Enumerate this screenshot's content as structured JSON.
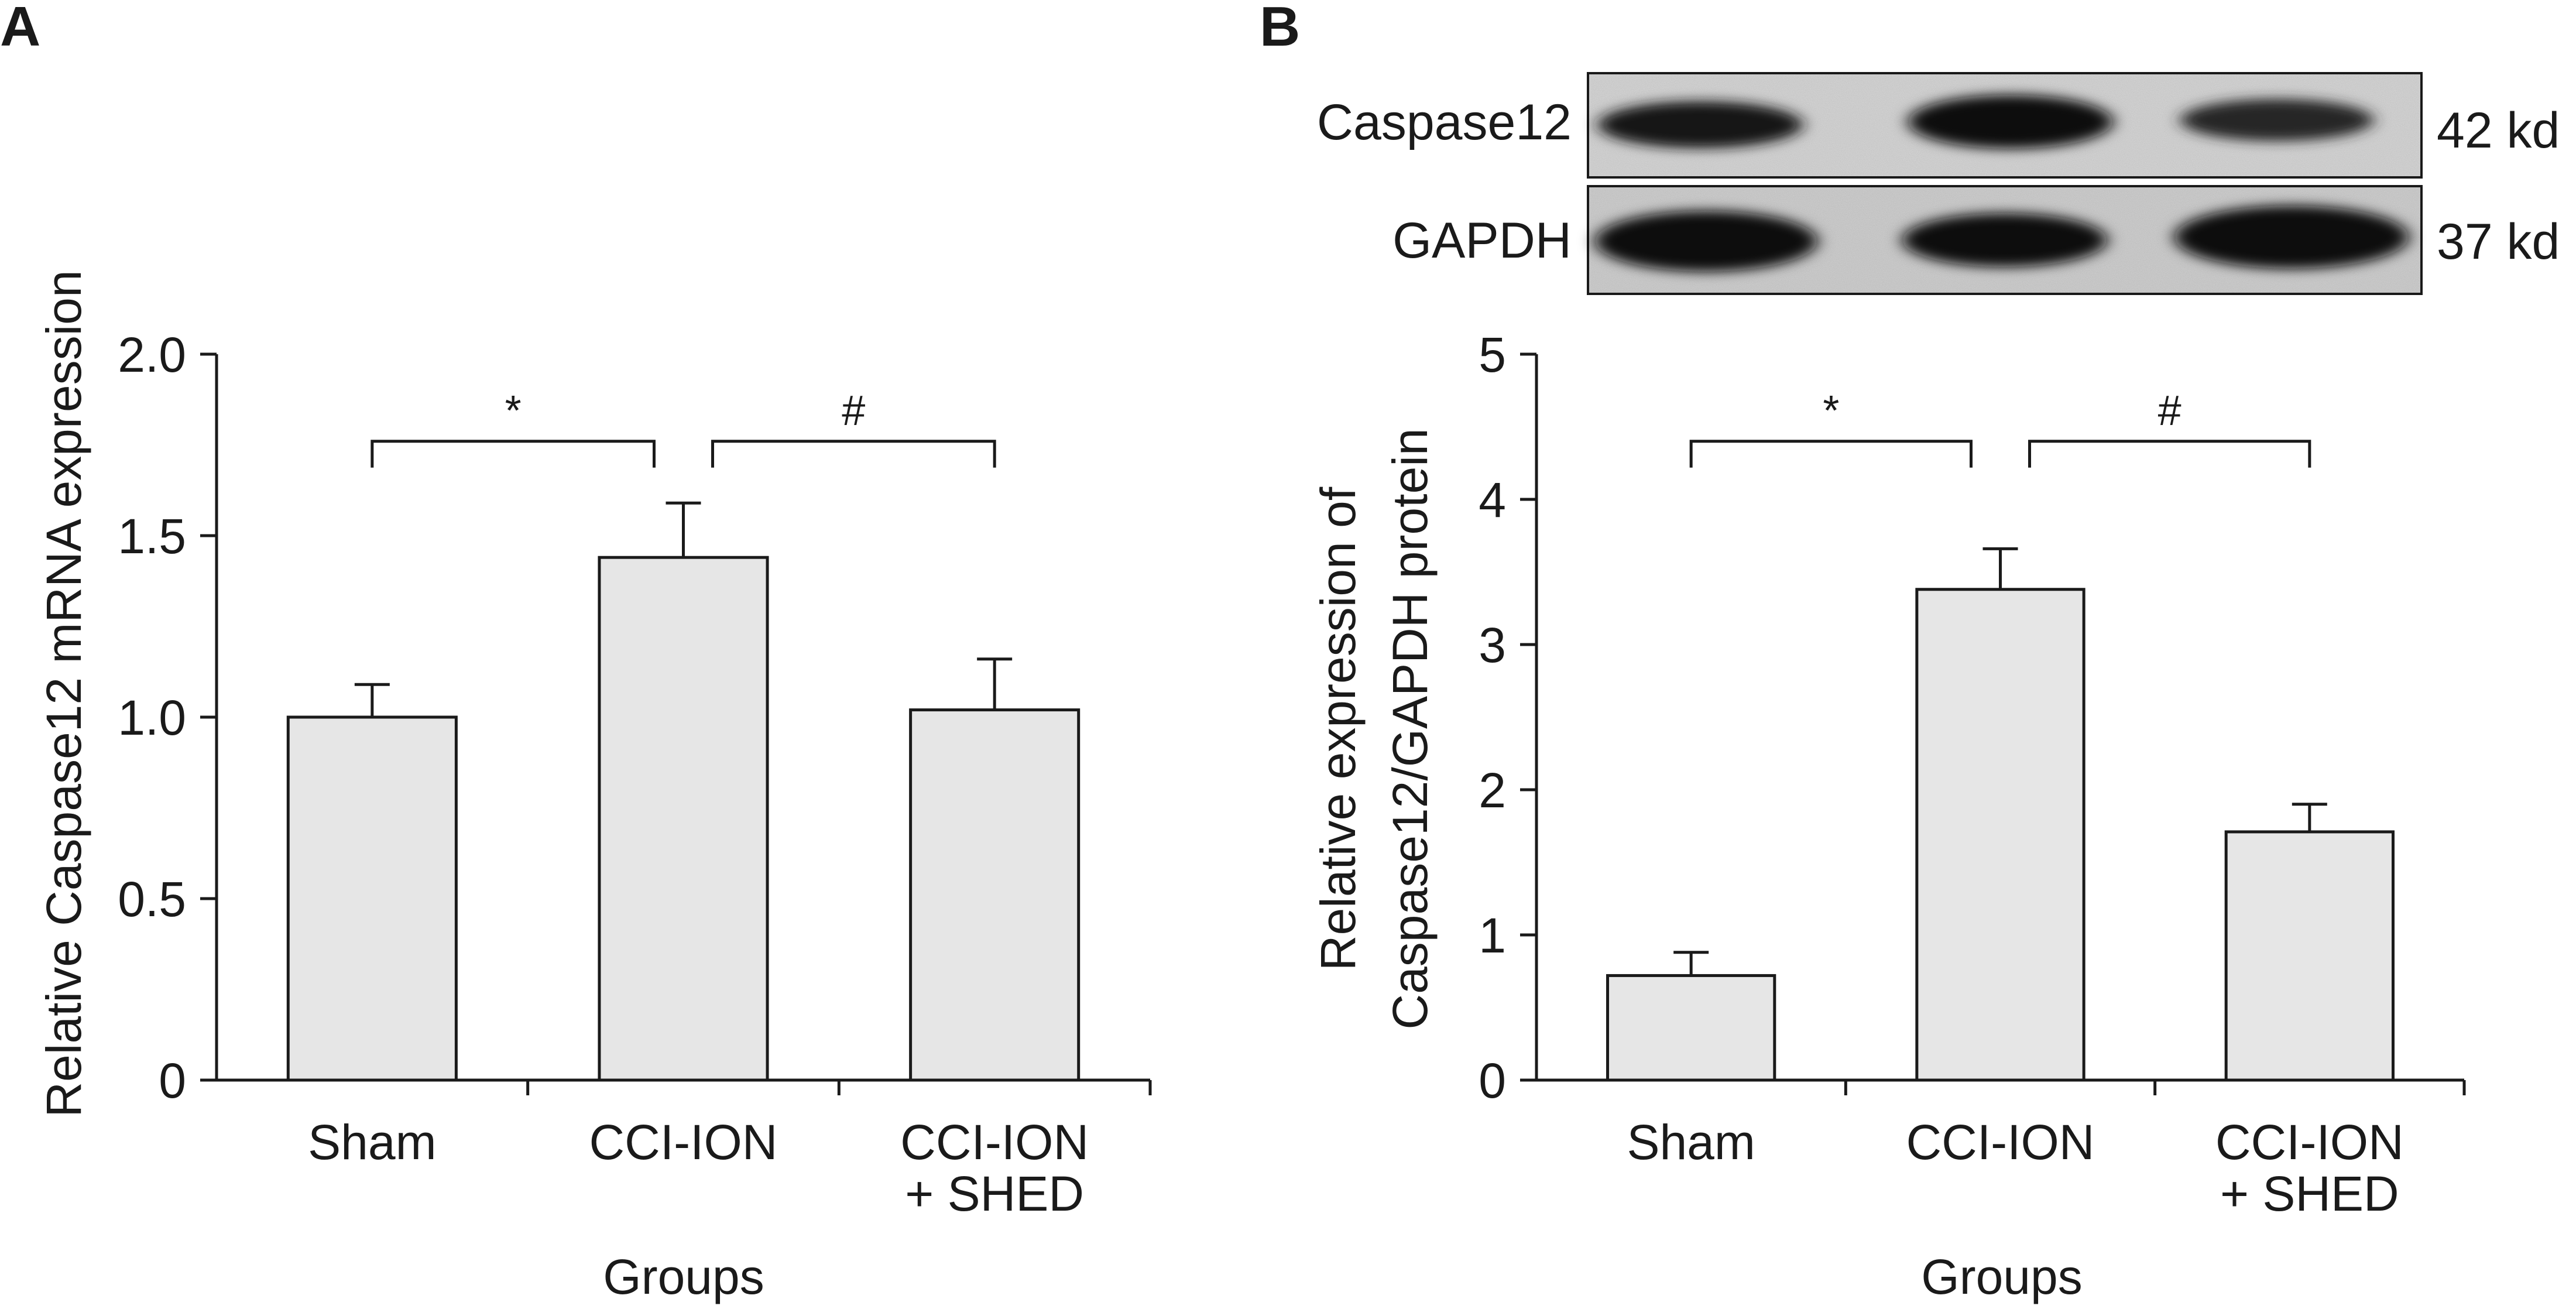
{
  "chart_data": [
    {
      "panel": "A",
      "type": "bar",
      "ylabel": "Relative Caspase12 mRNA expression",
      "xlabel": "Groups",
      "ylim": [
        0,
        2.0
      ],
      "yticks": [
        "0",
        "0.5",
        "1.0",
        "1.5",
        "2.0"
      ],
      "categories": [
        [
          "Sham"
        ],
        [
          "CCI-ION"
        ],
        [
          "CCI-ION",
          "+ SHED"
        ]
      ],
      "values": [
        1.0,
        1.44,
        1.02
      ],
      "errors": [
        0.09,
        0.15,
        0.14
      ],
      "bar_color": "#e6e6e6",
      "significance": [
        {
          "from": 0,
          "to": 1,
          "label": "*",
          "y": 1.76
        },
        {
          "from": 1,
          "to": 2,
          "label": "#",
          "y": 1.76
        }
      ],
      "grid": false
    },
    {
      "panel": "B",
      "type": "bar",
      "ylabel": [
        "Relative expression of",
        "Caspase12/GAPDH protein"
      ],
      "xlabel": "Groups",
      "ylim": [
        0,
        5
      ],
      "yticks": [
        "0",
        "1",
        "2",
        "3",
        "4",
        "5"
      ],
      "categories": [
        [
          "Sham"
        ],
        [
          "CCI-ION"
        ],
        [
          "CCI-ION",
          "+ SHED"
        ]
      ],
      "values": [
        0.72,
        3.38,
        1.71
      ],
      "errors": [
        0.16,
        0.28,
        0.19
      ],
      "bar_color": "#e6e6e6",
      "significance": [
        {
          "from": 0,
          "to": 1,
          "label": "*",
          "y": 4.4
        },
        {
          "from": 1,
          "to": 2,
          "label": "#",
          "y": 4.4
        }
      ],
      "grid": false,
      "blot": {
        "rows": [
          {
            "name": "Caspase12",
            "size": "42 kd"
          },
          {
            "name": "GAPDH",
            "size": "37 kd"
          }
        ]
      }
    }
  ]
}
